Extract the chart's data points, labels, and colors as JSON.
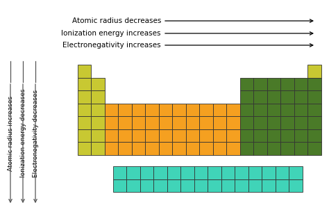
{
  "colors": {
    "yellow_green": "#c8c832",
    "orange": "#f5a020",
    "dark_green": "#4a7a28",
    "cyan": "#40d4b8",
    "background": "#ffffff",
    "border": "#333333",
    "arrow_color": "#555555"
  },
  "top_arrows": [
    "Atomic radius decreases",
    "Ionization energy increases",
    "Electronegativity increases"
  ],
  "left_arrows": [
    "Atomic radius increases",
    "Ionization energy decreases",
    "Electronegativity decreases"
  ],
  "figsize": [
    4.74,
    3.12
  ],
  "dpi": 100
}
